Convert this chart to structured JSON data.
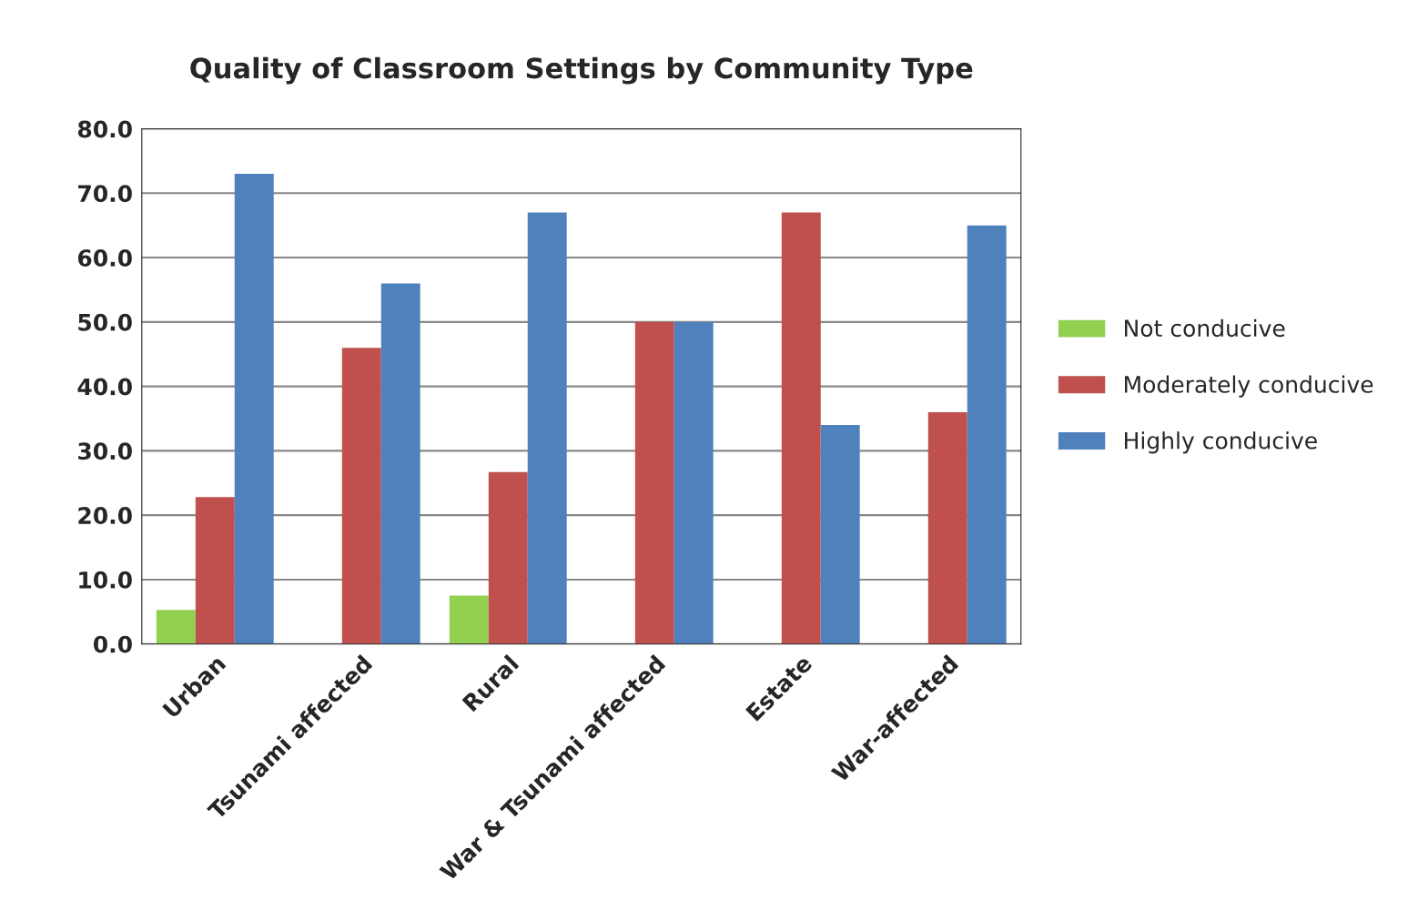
{
  "chart_data": {
    "type": "bar",
    "title": "Quality of Classroom Settings by Community Type",
    "categories": [
      "Urban",
      "Tsunami affected",
      "Rural",
      "War & Tsunami affected",
      "Estate",
      "War-affected"
    ],
    "series": [
      {
        "name": "Not conducive",
        "color": "#92d050",
        "values": [
          5.3,
          0,
          7.5,
          0,
          0,
          0
        ]
      },
      {
        "name": "Moderately conducive",
        "color": "#c0504d",
        "values": [
          22.8,
          46,
          26.7,
          50,
          67,
          36
        ]
      },
      {
        "name": "Highly conducive",
        "color": "#4f81bd",
        "values": [
          73,
          56,
          67,
          50,
          34,
          65
        ]
      }
    ],
    "ylim": [
      0,
      80
    ],
    "yticks": [
      {
        "value": 0,
        "label": "0.0"
      },
      {
        "value": 10,
        "label": "10.0"
      },
      {
        "value": 20,
        "label": "20.0"
      },
      {
        "value": 30,
        "label": "30.0"
      },
      {
        "value": 40,
        "label": "40.0"
      },
      {
        "value": 50,
        "label": "50.0"
      },
      {
        "value": 60,
        "label": "60.0"
      },
      {
        "value": 70,
        "label": "70.0"
      },
      {
        "value": 80,
        "label": "80.0"
      }
    ],
    "grid": "y",
    "legend": "right"
  }
}
